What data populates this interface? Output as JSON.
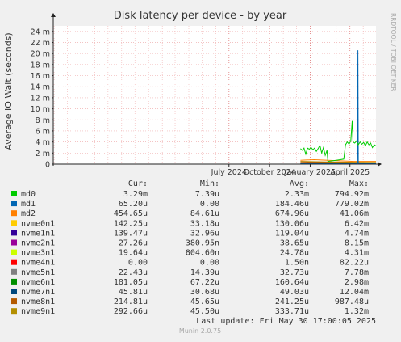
{
  "chart_data": {
    "type": "line",
    "title": "Disk latency per device - by year",
    "ylabel": "Average IO Wait (seconds)",
    "watermark": "RRDTOOL / TOBI OETIKER",
    "footer": "Munin 2.0.75",
    "last_update": "Last update:  Fri May 30 17:00:05 2025",
    "y_unit": "seconds",
    "ylim": [
      0,
      0.025
    ],
    "y_ticks": [
      0,
      0.002,
      0.004,
      0.006,
      0.008,
      0.01,
      0.012,
      0.014,
      0.016,
      0.018,
      0.02,
      0.022,
      0.024
    ],
    "y_tick_labels": [
      "0",
      "2 m",
      "4 m",
      "6 m",
      "8 m",
      "10 m",
      "12 m",
      "14 m",
      "16 m",
      "18 m",
      "20 m",
      "22 m",
      "24 m"
    ],
    "x_range": [
      "2023-05-30",
      "2025-05-30"
    ],
    "x_ticks": [
      "2024-07-01",
      "2024-10-01",
      "2025-01-01",
      "2025-04-01"
    ],
    "x_tick_labels": [
      "July 2024",
      "October 2024",
      "January 2025",
      "April 2025"
    ],
    "grid": true,
    "legend_headers": [
      "Cur:",
      "Min:",
      "Avg:",
      "Max:"
    ],
    "series": [
      {
        "name": "md0",
        "color": "#00cc00",
        "cur": "3.29m",
        "min": "7.39u",
        "avg": "2.33m",
        "max": "794.92m",
        "points": [
          [
            "2024-12-10",
            0.0028
          ],
          [
            "2024-12-14",
            0.0025
          ],
          [
            "2024-12-18",
            0.0029
          ],
          [
            "2024-12-22",
            0.0018
          ],
          [
            "2024-12-26",
            0.0029
          ],
          [
            "2024-12-30",
            0.0027
          ],
          [
            "2025-01-03",
            0.003
          ],
          [
            "2025-01-07",
            0.0026
          ],
          [
            "2025-01-11",
            0.0029
          ],
          [
            "2025-01-15",
            0.0023
          ],
          [
            "2025-01-19",
            0.0028
          ],
          [
            "2025-01-23",
            0.0034
          ],
          [
            "2025-01-27",
            0.002
          ],
          [
            "2025-01-31",
            0.003
          ],
          [
            "2025-02-04",
            0.0016
          ],
          [
            "2025-02-08",
            0.0025
          ],
          [
            "2025-02-10",
            0.0005
          ],
          [
            "2025-02-20",
            0.0006
          ],
          [
            "2025-03-01",
            0.0007
          ],
          [
            "2025-03-10",
            0.0008
          ],
          [
            "2025-03-18",
            0.0009
          ],
          [
            "2025-03-22",
            0.0035
          ],
          [
            "2025-03-26",
            0.004
          ],
          [
            "2025-03-30",
            0.0036
          ],
          [
            "2025-04-03",
            0.0042
          ],
          [
            "2025-04-06",
            0.0078
          ],
          [
            "2025-04-08",
            0.004
          ],
          [
            "2025-04-12",
            0.0038
          ],
          [
            "2025-04-16",
            0.0042
          ],
          [
            "2025-04-20",
            0.0035
          ],
          [
            "2025-04-24",
            0.004
          ],
          [
            "2025-04-28",
            0.0036
          ],
          [
            "2025-05-02",
            0.0039
          ],
          [
            "2025-05-06",
            0.0033
          ],
          [
            "2025-05-10",
            0.004
          ],
          [
            "2025-05-14",
            0.0035
          ],
          [
            "2025-05-18",
            0.0038
          ],
          [
            "2025-05-22",
            0.003
          ],
          [
            "2025-05-26",
            0.0035
          ],
          [
            "2025-05-30",
            0.0033
          ]
        ]
      },
      {
        "name": "md1",
        "color": "#0066b3",
        "cur": "65.20u",
        "min": "0.00",
        "avg": "184.46u",
        "max": "779.02m",
        "points": [
          [
            "2024-12-10",
            0.0001
          ],
          [
            "2025-04-18",
            0.0001
          ],
          [
            "2025-04-19",
            0.0206
          ],
          [
            "2025-04-20",
            0.0001
          ],
          [
            "2025-05-30",
            0.0001
          ]
        ]
      },
      {
        "name": "md2",
        "color": "#ff8000",
        "cur": "454.65u",
        "min": "84.61u",
        "avg": "674.96u",
        "max": "41.06m",
        "points": [
          [
            "2024-12-10",
            0.0007
          ],
          [
            "2025-01-10",
            0.0008
          ],
          [
            "2025-02-10",
            0.0007
          ],
          [
            "2025-03-10",
            0.0006
          ],
          [
            "2025-04-10",
            0.0005
          ],
          [
            "2025-05-30",
            0.0005
          ]
        ]
      },
      {
        "name": "nvme0n1",
        "color": "#ffcc00",
        "cur": "142.25u",
        "min": "33.18u",
        "avg": "130.06u",
        "max": "6.42m",
        "points": [
          [
            "2024-12-10",
            0.0002
          ],
          [
            "2025-05-30",
            0.0001
          ]
        ]
      },
      {
        "name": "nvme1n1",
        "color": "#330099",
        "cur": "139.47u",
        "min": "32.96u",
        "avg": "119.04u",
        "max": "4.74m",
        "points": [
          [
            "2024-12-10",
            0.0001
          ],
          [
            "2025-05-30",
            0.0001
          ]
        ]
      },
      {
        "name": "nvme2n1",
        "color": "#990099",
        "cur": "27.26u",
        "min": "380.95n",
        "avg": "38.65u",
        "max": "8.15m",
        "points": [
          [
            "2024-12-10",
            0.0
          ],
          [
            "2025-05-30",
            0.0
          ]
        ]
      },
      {
        "name": "nvme3n1",
        "color": "#ccff00",
        "cur": "19.64u",
        "min": "804.60n",
        "avg": "24.78u",
        "max": "4.31m",
        "points": [
          [
            "2024-12-10",
            0.0
          ],
          [
            "2025-05-30",
            0.0
          ]
        ]
      },
      {
        "name": "nvme4n1",
        "color": "#ff0000",
        "cur": "0.00",
        "min": "0.00",
        "avg": "1.50n",
        "max": "82.22u",
        "points": [
          [
            "2024-12-10",
            0.0
          ],
          [
            "2025-05-30",
            0.0
          ]
        ]
      },
      {
        "name": "nvme5n1",
        "color": "#808080",
        "cur": "22.43u",
        "min": "14.39u",
        "avg": "32.73u",
        "max": "7.78m",
        "points": [
          [
            "2024-12-10",
            0.0
          ],
          [
            "2025-05-30",
            0.0
          ]
        ]
      },
      {
        "name": "nvme6n1",
        "color": "#008f00",
        "cur": "181.05u",
        "min": "67.22u",
        "avg": "160.64u",
        "max": "2.98m",
        "points": [
          [
            "2024-12-10",
            0.0002
          ],
          [
            "2025-05-30",
            0.0002
          ]
        ]
      },
      {
        "name": "nvme7n1",
        "color": "#00487d",
        "cur": "45.81u",
        "min": "30.68u",
        "avg": "49.03u",
        "max": "12.04m",
        "points": [
          [
            "2024-12-10",
            0.0
          ],
          [
            "2025-05-30",
            0.0
          ]
        ]
      },
      {
        "name": "nvme8n1",
        "color": "#b35a00",
        "cur": "214.81u",
        "min": "45.65u",
        "avg": "241.25u",
        "max": "987.48u",
        "points": [
          [
            "2024-12-10",
            0.0004
          ],
          [
            "2025-02-10",
            0.0003
          ],
          [
            "2025-05-30",
            0.0002
          ]
        ]
      },
      {
        "name": "nvme9n1",
        "color": "#b38f00",
        "cur": "292.66u",
        "min": "45.50u",
        "avg": "333.71u",
        "max": "1.32m",
        "points": [
          [
            "2024-12-10",
            0.0005
          ],
          [
            "2025-02-10",
            0.0004
          ],
          [
            "2025-05-30",
            0.0003
          ]
        ]
      }
    ]
  }
}
